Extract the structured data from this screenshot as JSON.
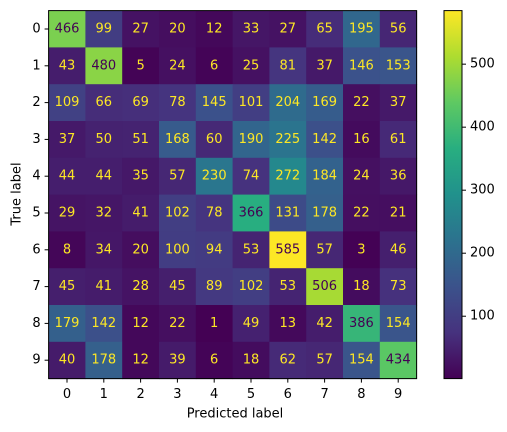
{
  "chart_data": {
    "type": "heatmap",
    "x_categories": [
      "0",
      "1",
      "2",
      "3",
      "4",
      "5",
      "6",
      "7",
      "8",
      "9"
    ],
    "y_categories": [
      "0",
      "1",
      "2",
      "3",
      "4",
      "5",
      "6",
      "7",
      "8",
      "9"
    ],
    "xlabel": "Predicted label",
    "ylabel": "True label",
    "values": [
      [
        466,
        99,
        27,
        20,
        12,
        33,
        27,
        65,
        195,
        56
      ],
      [
        43,
        480,
        5,
        24,
        6,
        25,
        81,
        37,
        146,
        153
      ],
      [
        109,
        66,
        69,
        78,
        145,
        101,
        204,
        169,
        22,
        37
      ],
      [
        37,
        50,
        51,
        168,
        60,
        190,
        225,
        142,
        16,
        61
      ],
      [
        44,
        44,
        35,
        57,
        230,
        74,
        272,
        184,
        24,
        36
      ],
      [
        29,
        32,
        41,
        102,
        78,
        366,
        131,
        178,
        22,
        21
      ],
      [
        8,
        34,
        20,
        100,
        94,
        53,
        585,
        57,
        3,
        46
      ],
      [
        45,
        41,
        28,
        45,
        89,
        102,
        53,
        506,
        18,
        73
      ],
      [
        179,
        142,
        12,
        22,
        1,
        49,
        13,
        42,
        386,
        154
      ],
      [
        40,
        178,
        12,
        39,
        6,
        18,
        62,
        57,
        154,
        434
      ]
    ],
    "colormap": "viridis",
    "clim": [
      1,
      585
    ],
    "cticks": [
      100,
      200,
      300,
      400,
      500
    ]
  }
}
